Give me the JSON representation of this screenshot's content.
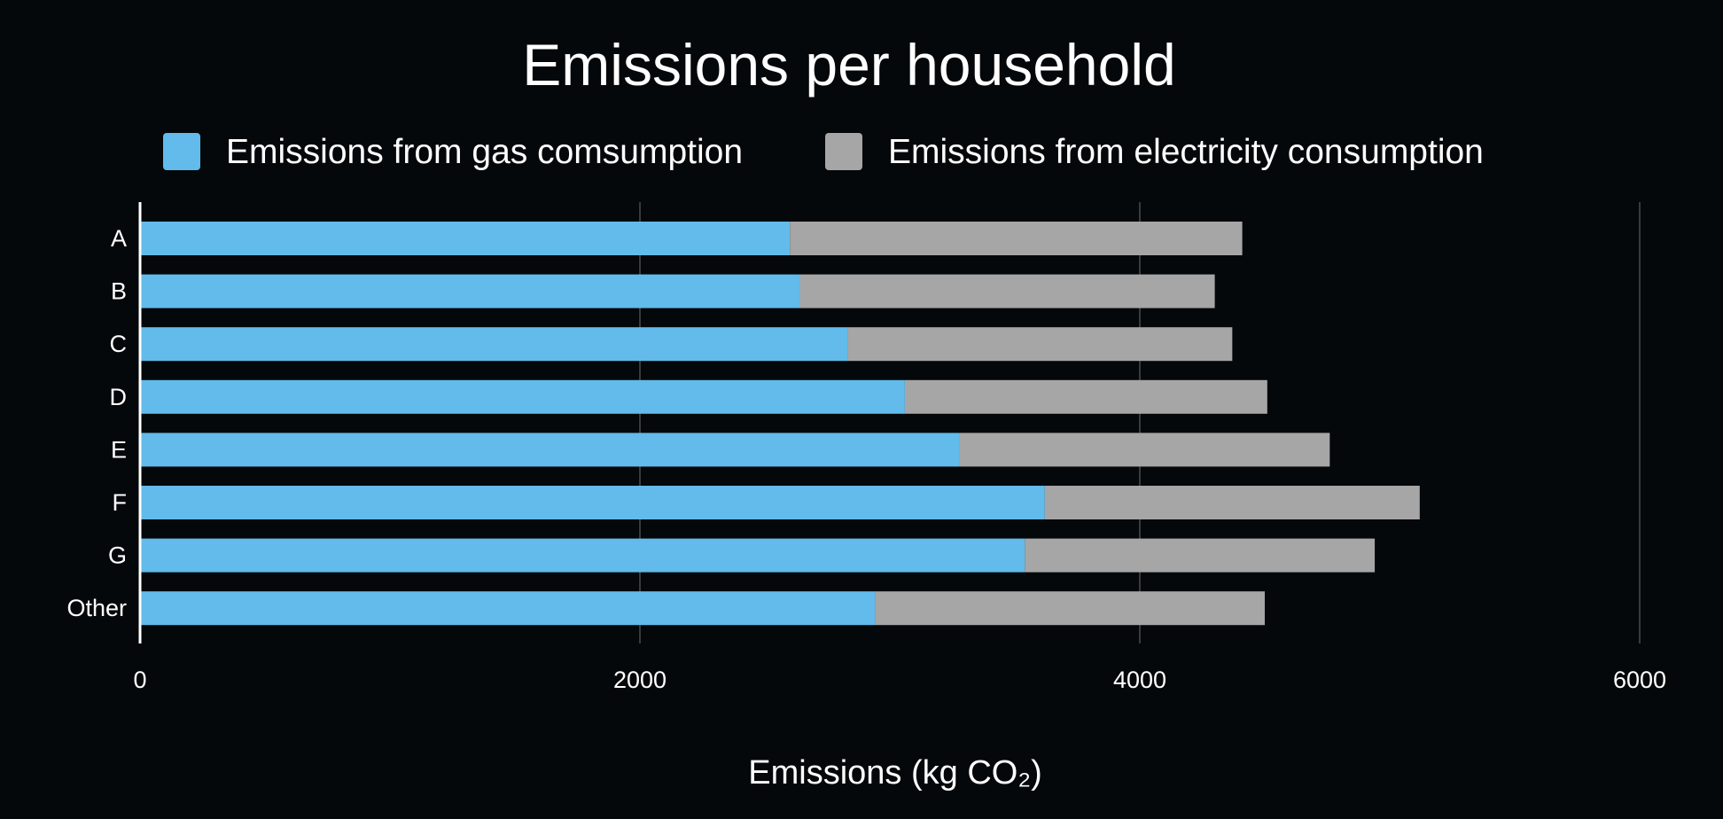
{
  "chart_data": {
    "type": "bar",
    "orientation": "horizontal",
    "stacked": true,
    "title": "Emissions per household",
    "xlabel": "Emissions (kg CO₂)",
    "ylabel": "",
    "categories": [
      "A",
      "B",
      "C",
      "D",
      "E",
      "F",
      "G",
      "Other"
    ],
    "series": [
      {
        "name": "Emissions from gas comsumption",
        "color": "#62bbea",
        "values": [
          2600,
          2640,
          2830,
          3060,
          3280,
          3620,
          3540,
          2940
        ]
      },
      {
        "name": "Emissions from electricity consumption",
        "color": "#a6a6a6",
        "values": [
          1810,
          1660,
          1540,
          1450,
          1480,
          1500,
          1400,
          1560
        ]
      }
    ],
    "xlim": [
      0,
      6000
    ],
    "xticks": [
      "0",
      "2000",
      "4000",
      "6000"
    ],
    "grid": true,
    "legend_position": "top",
    "background_color": "#05080a",
    "grid_color": "#3a3a3a",
    "axis_color": "#ffffff",
    "text_color": "#ffffff"
  }
}
